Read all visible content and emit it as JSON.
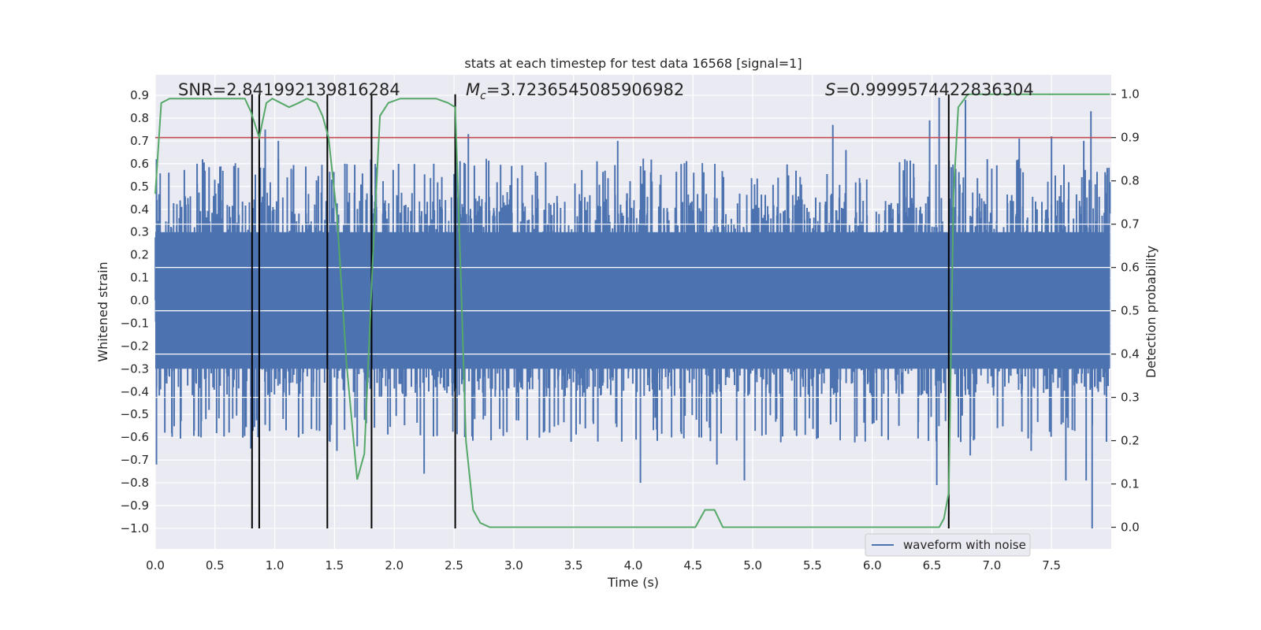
{
  "chart_data": {
    "type": "line",
    "title": "stats at each timestep for test data 16568 [signal=1]",
    "xlabel": "Time (s)",
    "ylabel": "Whitened strain",
    "y2label": "Detection probability",
    "xlim": [
      0.0,
      8.0
    ],
    "ylim": [
      -1.09,
      0.99
    ],
    "y2lim": [
      -0.05,
      1.045
    ],
    "xticks": [
      0.0,
      0.5,
      1.0,
      1.5,
      2.0,
      2.5,
      3.0,
      3.5,
      4.0,
      4.5,
      5.0,
      5.5,
      6.0,
      6.5,
      7.0,
      7.5
    ],
    "yticks": [
      0.9,
      0.8,
      0.7,
      0.6,
      0.5,
      0.4,
      0.3,
      0.2,
      0.1,
      0.0,
      -0.1,
      -0.2,
      -0.3,
      -0.4,
      -0.5,
      -0.6,
      -0.7,
      -0.8,
      -0.9,
      -1.0
    ],
    "y2ticks": [
      1.0,
      0.9,
      0.8,
      0.7,
      0.6,
      0.5,
      0.4,
      0.3,
      0.2,
      0.1,
      0.0
    ],
    "grid": true,
    "legend": {
      "placement": "bottom-right",
      "entries": [
        "waveform with noise"
      ]
    },
    "annotations": {
      "snr": "SNR=2.841992139816284",
      "mc_symbol": "M",
      "mc_sub": "c",
      "mc_value": "=3.7236545085906982",
      "s_symbol": "S",
      "s_value": "=0.9999574422836304"
    },
    "threshold": {
      "axis": "y2",
      "value": 0.9,
      "color": "#c44e52"
    },
    "vertical_markers": {
      "x": [
        0.81,
        0.87,
        1.44,
        1.81,
        2.51,
        6.64
      ],
      "ymin": -1.0,
      "y2max": 1.0,
      "color": "#000000"
    },
    "series": [
      {
        "name": "waveform with noise",
        "axis": "y",
        "color": "#4c72b0",
        "style": "noise",
        "x_range": [
          0.0,
          7.99
        ],
        "envelope_typical": [
          -0.4,
          0.45
        ],
        "spikes": [
          {
            "x": 0.01,
            "y": -0.72
          },
          {
            "x": 0.01,
            "y": 0.62
          },
          {
            "x": 0.08,
            "y": -0.58
          },
          {
            "x": 0.35,
            "y": 0.6
          },
          {
            "x": 0.45,
            "y": -0.48
          },
          {
            "x": 0.8,
            "y": -0.65
          },
          {
            "x": 0.86,
            "y": -0.6
          },
          {
            "x": 0.92,
            "y": 0.75
          },
          {
            "x": 1.03,
            "y": 0.7
          },
          {
            "x": 1.07,
            "y": -0.52
          },
          {
            "x": 1.35,
            "y": -0.57
          },
          {
            "x": 1.52,
            "y": -0.66
          },
          {
            "x": 1.69,
            "y": -0.64
          },
          {
            "x": 2.25,
            "y": -0.76
          },
          {
            "x": 2.52,
            "y": 0.7
          },
          {
            "x": 2.59,
            "y": -0.6
          },
          {
            "x": 2.62,
            "y": 0.73
          },
          {
            "x": 3.3,
            "y": -0.58
          },
          {
            "x": 3.48,
            "y": -0.62
          },
          {
            "x": 3.87,
            "y": 0.7
          },
          {
            "x": 4.06,
            "y": -0.8
          },
          {
            "x": 4.7,
            "y": -0.72
          },
          {
            "x": 4.93,
            "y": -0.79
          },
          {
            "x": 5.35,
            "y": -0.57
          },
          {
            "x": 5.67,
            "y": 0.77
          },
          {
            "x": 5.78,
            "y": 0.66
          },
          {
            "x": 6.48,
            "y": 0.79
          },
          {
            "x": 6.54,
            "y": -0.81
          },
          {
            "x": 6.56,
            "y": 0.89
          },
          {
            "x": 6.78,
            "y": 0.88
          },
          {
            "x": 6.82,
            "y": -0.68
          },
          {
            "x": 7.23,
            "y": 0.71
          },
          {
            "x": 7.33,
            "y": -0.66
          },
          {
            "x": 7.5,
            "y": 0.72
          },
          {
            "x": 7.62,
            "y": -0.79
          },
          {
            "x": 7.77,
            "y": 0.7
          },
          {
            "x": 7.79,
            "y": -0.79
          },
          {
            "x": 7.83,
            "y": 0.83
          },
          {
            "x": 7.84,
            "y": -1.0
          },
          {
            "x": 7.96,
            "y": -0.62
          }
        ]
      },
      {
        "name": "",
        "axis": "y2",
        "color": "#55a868",
        "x": [
          0.0,
          0.05,
          0.12,
          0.2,
          0.4,
          0.6,
          0.7,
          0.75,
          0.8,
          0.87,
          0.93,
          0.98,
          1.05,
          1.12,
          1.2,
          1.27,
          1.35,
          1.4,
          1.45,
          1.52,
          1.6,
          1.69,
          1.75,
          1.82,
          1.88,
          1.95,
          2.05,
          2.2,
          2.35,
          2.45,
          2.51,
          2.56,
          2.6,
          2.66,
          2.72,
          2.8,
          2.85,
          2.95,
          3.2,
          3.4,
          3.6,
          3.8,
          4.1,
          4.4,
          4.52,
          4.6,
          4.68,
          4.75,
          4.82,
          4.92,
          5.05,
          5.3,
          5.6,
          5.9,
          6.1,
          6.3,
          6.5,
          6.56,
          6.6,
          6.64,
          6.68,
          6.72,
          6.8,
          7.0,
          7.3,
          7.6,
          7.99
        ],
        "y": [
          0.77,
          0.98,
          0.99,
          0.99,
          0.99,
          0.99,
          0.99,
          0.99,
          0.96,
          0.9,
          0.98,
          0.99,
          0.98,
          0.97,
          0.98,
          0.99,
          0.98,
          0.95,
          0.9,
          0.72,
          0.38,
          0.11,
          0.17,
          0.62,
          0.95,
          0.98,
          0.99,
          0.99,
          0.99,
          0.98,
          0.97,
          0.55,
          0.2,
          0.04,
          0.01,
          0.0,
          0.0,
          0.0,
          0.0,
          0.0,
          0.0,
          0.0,
          0.0,
          0.0,
          0.0,
          0.04,
          0.04,
          0.0,
          0.0,
          0.0,
          0.0,
          0.0,
          0.0,
          0.0,
          0.0,
          0.0,
          0.0,
          0.0,
          0.02,
          0.08,
          0.77,
          0.97,
          1.0,
          1.0,
          1.0,
          1.0,
          1.0
        ]
      }
    ]
  }
}
